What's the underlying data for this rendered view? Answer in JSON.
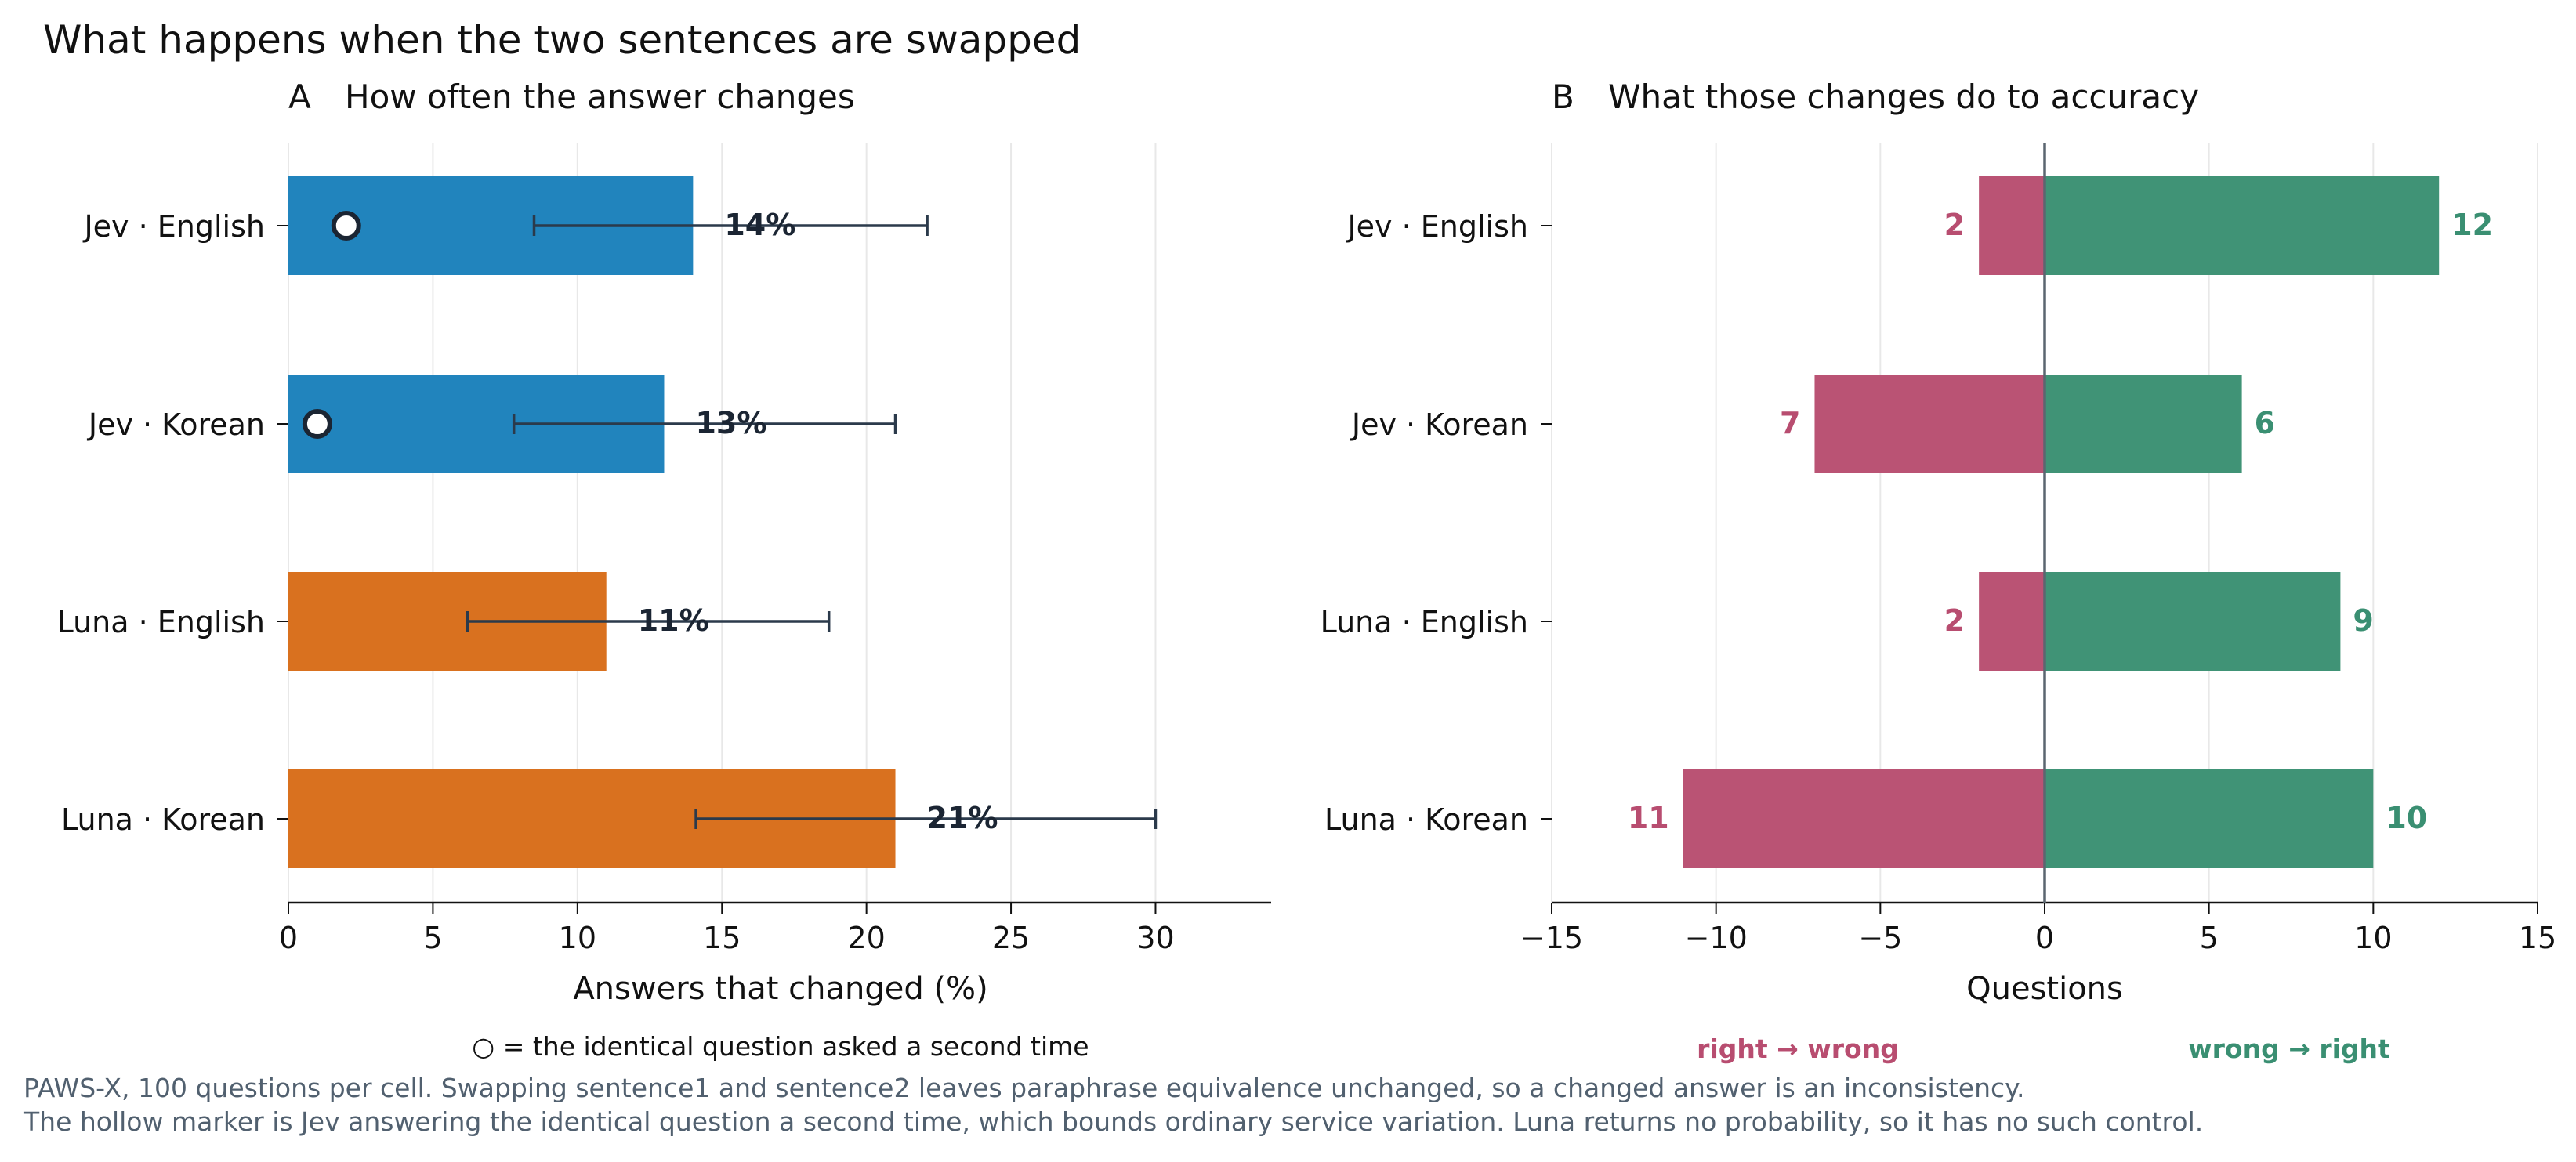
{
  "title": "What happens when the two sentences are swapped",
  "colors": {
    "jev": "#1a80bb",
    "luna": "#d86c18",
    "right_to_wrong": "#b84d70",
    "wrong_to_right": "#3a8f72",
    "errorbar": "#2b3a4b",
    "label_dark": "#1b2533",
    "note": "#51606f",
    "grid": "#e8e8e8",
    "zero_line": "#5b6670"
  },
  "chart_data": [
    {
      "type": "bar",
      "orientation": "horizontal",
      "panel_letter": "A",
      "title": "How often the answer changes",
      "xlabel": "Answers that changed (%)",
      "ylabel": "",
      "xlim": [
        0,
        34
      ],
      "xticks": [
        0,
        5,
        10,
        15,
        20,
        25,
        30
      ],
      "grid": "vertical",
      "categories": [
        "Jev · English",
        "Jev · Korean",
        "Luna · English",
        "Luna · Korean"
      ],
      "values": [
        14,
        13,
        11,
        21
      ],
      "value_labels": [
        "14%",
        "13%",
        "11%",
        "21%"
      ],
      "error_low": [
        8.5,
        7.8,
        6.2,
        14.1
      ],
      "error_high": [
        22.1,
        21.0,
        18.7,
        30.0
      ],
      "bar_colors": [
        "#1a80bb",
        "#1a80bb",
        "#d86c18",
        "#d86c18"
      ],
      "repeat_control": [
        2,
        1,
        null,
        null
      ],
      "legend_note": "○ = the identical question asked a second time"
    },
    {
      "type": "bar",
      "orientation": "horizontal-diverging",
      "panel_letter": "B",
      "title": "What those changes do to accuracy",
      "xlabel": "Questions",
      "ylabel": "",
      "xlim": [
        -15,
        15
      ],
      "xticks": [
        -15,
        -10,
        -5,
        0,
        5,
        10,
        15
      ],
      "xtick_labels": [
        "−15",
        "−10",
        "−5",
        "0",
        "5",
        "10",
        "15"
      ],
      "grid": "vertical",
      "categories": [
        "Jev · English",
        "Jev · Korean",
        "Luna · English",
        "Luna · Korean"
      ],
      "series": [
        {
          "name": "right → wrong",
          "values": [
            2,
            7,
            2,
            11
          ],
          "color": "#b84d70"
        },
        {
          "name": "wrong → right",
          "values": [
            12,
            6,
            9,
            10
          ],
          "color": "#3a8f72"
        }
      ]
    }
  ],
  "footnote": {
    "line1": "PAWS-X, 100 questions per cell. Swapping sentence1 and sentence2 leaves paraphrase equivalence unchanged, so a changed answer is an inconsistency.",
    "line2": "The hollow marker is Jev answering the identical question a second time, which bounds ordinary service variation. Luna returns no probability, so it has no such control."
  }
}
